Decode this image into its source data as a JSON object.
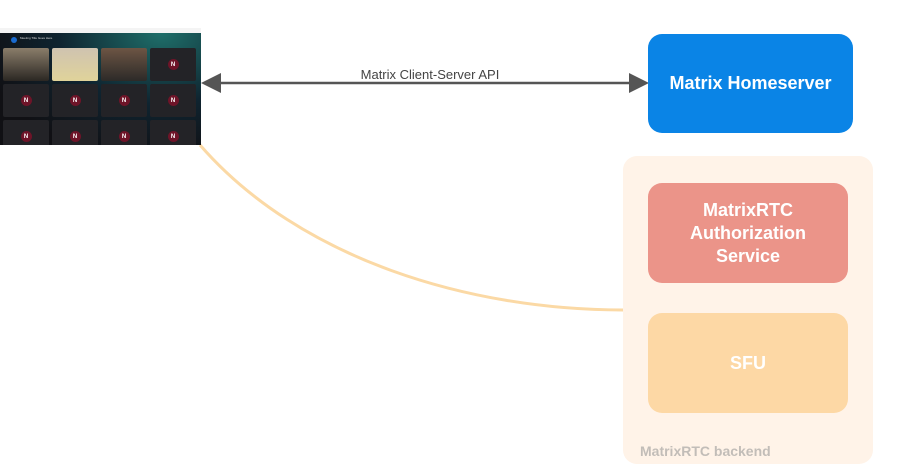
{
  "client_screenshot": {
    "meeting_title": "Meeting Title Goes Here",
    "tile_initial": "N"
  },
  "connection": {
    "label": "Matrix Client-Server API"
  },
  "homeserver": {
    "label": "Matrix Homeserver",
    "color": "#0a84e6"
  },
  "backend": {
    "label": "MatrixRTC backend",
    "color": "#fff3e8",
    "auth_service": {
      "label": "MatrixRTC Authorization Service",
      "color": "#eb9489"
    },
    "sfu": {
      "label": "SFU",
      "color": "#fdd8a5"
    }
  }
}
